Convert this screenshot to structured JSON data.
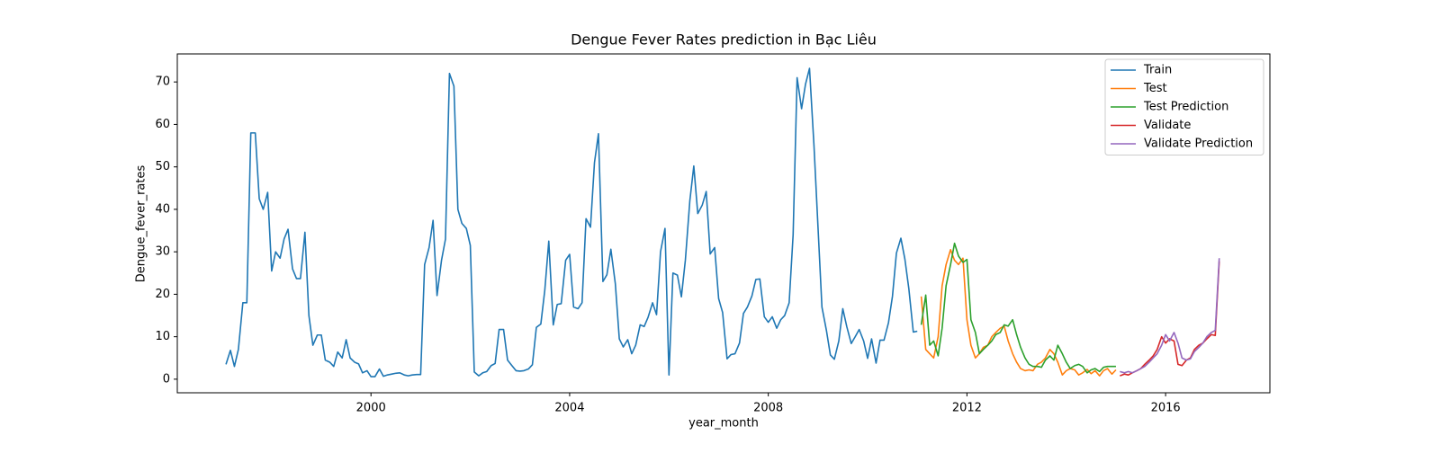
{
  "chart_data": {
    "type": "line",
    "title": "Dengue Fever Rates prediction in Bạc Liêu",
    "x_label": "year_month",
    "y_label": "Dengue_fever_rates",
    "xlim": [
      1996.1,
      2018.1
    ],
    "xticks": [
      2000,
      2004,
      2008,
      2012,
      2016
    ],
    "ylim": [
      -3.2,
      76.6
    ],
    "yticks": [
      0,
      10,
      20,
      30,
      40,
      50,
      60,
      70
    ],
    "legend": "upper right",
    "series": [
      {
        "name": "Train",
        "color": "#1f77b4",
        "x": [
          1997.08,
          1997.17,
          1997.25,
          1997.33,
          1997.42,
          1997.5,
          1997.58,
          1997.67,
          1997.75,
          1997.83,
          1997.92,
          1998,
          1998.08,
          1998.17,
          1998.25,
          1998.33,
          1998.42,
          1998.5,
          1998.58,
          1998.67,
          1998.75,
          1998.83,
          1998.92,
          1999,
          1999.08,
          1999.17,
          1999.25,
          1999.33,
          1999.42,
          1999.5,
          1999.58,
          1999.67,
          1999.75,
          1999.83,
          1999.92,
          2000,
          2000.08,
          2000.17,
          2000.25,
          2000.33,
          2000.42,
          2000.5,
          2000.58,
          2000.67,
          2000.75,
          2000.83,
          2000.92,
          2001,
          2001.08,
          2001.17,
          2001.25,
          2001.33,
          2001.42,
          2001.5,
          2001.58,
          2001.67,
          2001.75,
          2001.83,
          2001.92,
          2002,
          2002.08,
          2002.17,
          2002.25,
          2002.33,
          2002.42,
          2002.5,
          2002.58,
          2002.67,
          2002.75,
          2002.83,
          2002.92,
          2003,
          2003.08,
          2003.17,
          2003.25,
          2003.33,
          2003.42,
          2003.5,
          2003.58,
          2003.67,
          2003.75,
          2003.83,
          2003.92,
          2004,
          2004.08,
          2004.17,
          2004.25,
          2004.33,
          2004.42,
          2004.5,
          2004.58,
          2004.67,
          2004.75,
          2004.83,
          2004.92,
          2005,
          2005.08,
          2005.17,
          2005.25,
          2005.33,
          2005.42,
          2005.5,
          2005.58,
          2005.67,
          2005.75,
          2005.83,
          2005.92,
          2006,
          2006.08,
          2006.17,
          2006.25,
          2006.33,
          2006.42,
          2006.5,
          2006.58,
          2006.67,
          2006.75,
          2006.83,
          2006.92,
          2007,
          2007.08,
          2007.17,
          2007.25,
          2007.33,
          2007.42,
          2007.5,
          2007.58,
          2007.67,
          2007.75,
          2007.83,
          2007.92,
          2008,
          2008.08,
          2008.17,
          2008.25,
          2008.33,
          2008.42,
          2008.5,
          2008.58,
          2008.67,
          2008.75,
          2008.83,
          2008.92,
          2009,
          2009.08,
          2009.17,
          2009.25,
          2009.33,
          2009.42,
          2009.5,
          2009.58,
          2009.67,
          2009.75,
          2009.83,
          2009.92,
          2010,
          2010.08,
          2010.17,
          2010.25,
          2010.33,
          2010.42,
          2010.5,
          2010.58,
          2010.67,
          2010.75,
          2010.83,
          2010.92,
          2011
        ],
        "values": [
          3.5,
          6.8,
          3,
          7,
          18,
          18,
          58,
          58,
          42.5,
          40,
          44,
          25.5,
          30,
          28.5,
          33,
          35.3,
          26,
          23.7,
          23.7,
          34.6,
          15,
          8,
          10.4,
          10.4,
          4.5,
          4,
          3,
          6.4,
          5,
          9.3,
          5,
          4,
          3.6,
          1.5,
          2,
          0.6,
          0.6,
          2.4,
          0.7,
          1,
          1.2,
          1.4,
          1.5,
          1,
          0.8,
          1,
          1.1,
          1.1,
          27,
          31,
          37.4,
          19.7,
          28,
          33,
          72,
          69,
          40,
          36.7,
          35.5,
          31.5,
          1.7,
          0.8,
          1.5,
          1.8,
          3.2,
          3.7,
          11.7,
          11.7,
          4.5,
          3.3,
          2,
          1.9,
          2,
          2.4,
          3.4,
          12.2,
          13,
          21,
          32.5,
          12.8,
          17.6,
          17.8,
          28,
          29.4,
          17,
          16.6,
          18,
          37.8,
          35.8,
          51,
          57.8,
          23,
          24.6,
          30.6,
          22.5,
          9.5,
          7.6,
          9.3,
          6,
          8,
          12.8,
          12.4,
          14.6,
          18,
          15.2,
          30,
          35.5,
          1,
          25,
          24.5,
          19.4,
          28,
          42,
          50.2,
          39,
          41,
          44.2,
          29.5,
          31,
          19,
          15.7,
          4.8,
          5.8,
          6,
          8.5,
          15.5,
          17,
          19.6,
          23.5,
          23.6,
          14.7,
          13.4,
          14.7,
          12,
          14,
          15,
          18,
          34,
          71,
          63.7,
          69.5,
          73.2,
          55,
          36,
          17,
          11.5,
          5.7,
          4.7,
          9,
          16.6,
          12.4,
          8.4,
          10,
          11.7,
          9,
          4.9,
          9.5,
          3.8,
          9.2,
          9.2,
          13.3,
          19.5,
          29.7,
          33.2,
          28.3,
          21.3,
          11.1,
          11.3
        ]
      },
      {
        "name": "Test",
        "color": "#ff7f0e",
        "x": [
          2011.08,
          2011.17,
          2011.25,
          2011.33,
          2011.42,
          2011.5,
          2011.58,
          2011.67,
          2011.75,
          2011.83,
          2011.92,
          2012,
          2012.08,
          2012.17,
          2012.25,
          2012.33,
          2012.42,
          2012.5,
          2012.58,
          2012.67,
          2012.75,
          2012.83,
          2012.92,
          2013,
          2013.08,
          2013.17,
          2013.25,
          2013.33,
          2013.42,
          2013.5,
          2013.58,
          2013.67,
          2013.75,
          2013.83,
          2013.92,
          2014,
          2014.08,
          2014.17,
          2014.25,
          2014.33,
          2014.42,
          2014.5,
          2014.58,
          2014.67,
          2014.75,
          2014.83,
          2014.92,
          2015
        ],
        "values": [
          19.5,
          7,
          6,
          5,
          10,
          22,
          27,
          30.5,
          28,
          27,
          28.5,
          14,
          8,
          5,
          6,
          7.5,
          8,
          10,
          11,
          12,
          12.5,
          9,
          6,
          4,
          2.5,
          2,
          2.2,
          2,
          3.5,
          4,
          5,
          7,
          6,
          4,
          1,
          2,
          2.5,
          2.2,
          1,
          1.5,
          2.3,
          1.3,
          2,
          0.8,
          2,
          2.5,
          1.2,
          2.2
        ]
      },
      {
        "name": "Test Prediction",
        "color": "#2ca02c",
        "x": [
          2011.08,
          2011.17,
          2011.25,
          2011.33,
          2011.42,
          2011.5,
          2011.58,
          2011.67,
          2011.75,
          2011.83,
          2011.92,
          2012,
          2012.08,
          2012.17,
          2012.25,
          2012.33,
          2012.42,
          2012.5,
          2012.58,
          2012.67,
          2012.75,
          2012.83,
          2012.92,
          2013,
          2013.08,
          2013.17,
          2013.25,
          2013.33,
          2013.42,
          2013.5,
          2013.58,
          2013.67,
          2013.75,
          2013.83,
          2013.92,
          2014,
          2014.08,
          2014.17,
          2014.25,
          2014.33,
          2014.42,
          2014.5,
          2014.58,
          2014.67,
          2014.75,
          2014.83,
          2014.92,
          2015
        ],
        "values": [
          12.8,
          19.8,
          8,
          9,
          5.5,
          12,
          22,
          27,
          32,
          29,
          27.5,
          28.2,
          14,
          11,
          6,
          7,
          8,
          9,
          10.5,
          11,
          12.8,
          12.5,
          14,
          10.5,
          7.5,
          5,
          3.5,
          3,
          3,
          2.8,
          4.5,
          5.5,
          4.5,
          8,
          6,
          4,
          2.5,
          3.2,
          3.5,
          3,
          1.5,
          2.2,
          2.5,
          1.8,
          2.8,
          3,
          3,
          3
        ]
      },
      {
        "name": "Validate",
        "color": "#d62728",
        "x": [
          2015.08,
          2015.17,
          2015.25,
          2015.33,
          2015.42,
          2015.5,
          2015.58,
          2015.67,
          2015.75,
          2015.83,
          2015.92,
          2016,
          2016.08,
          2016.17,
          2016.25,
          2016.33,
          2016.42,
          2016.5,
          2016.58,
          2016.67,
          2016.75,
          2016.83,
          2016.92,
          2017,
          2017.08
        ],
        "values": [
          0.8,
          1.2,
          1,
          1.5,
          2,
          2.5,
          3.5,
          4.5,
          5.5,
          7,
          10,
          8.5,
          9.5,
          9,
          3.5,
          3.2,
          4.5,
          5,
          7,
          8,
          8.5,
          9.5,
          10.5,
          10.3,
          27.8
        ]
      },
      {
        "name": "Validate Prediction",
        "color": "#9467bd",
        "x": [
          2015.08,
          2015.17,
          2015.25,
          2015.33,
          2015.42,
          2015.5,
          2015.58,
          2015.67,
          2015.75,
          2015.83,
          2015.92,
          2016,
          2016.08,
          2016.17,
          2016.25,
          2016.33,
          2016.42,
          2016.5,
          2016.58,
          2016.67,
          2016.75,
          2016.83,
          2016.92,
          2017,
          2017.08
        ],
        "values": [
          1.8,
          1.5,
          1.8,
          1.5,
          2,
          2.5,
          3,
          4,
          5,
          6,
          8,
          10.5,
          9,
          11,
          8.5,
          5,
          4.5,
          4.8,
          6.5,
          7.5,
          8.5,
          10,
          11,
          11.5,
          28.5
        ]
      }
    ]
  }
}
